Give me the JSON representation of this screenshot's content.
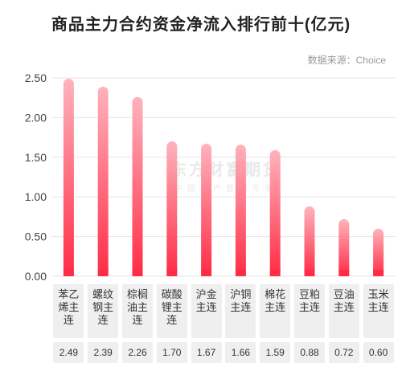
{
  "title": "商品主力合约资金净流入排行前十(亿元)",
  "source": "数据来源：Choice",
  "watermark": {
    "line1": "东方财富期货",
    "line2": "中国资产管理专家"
  },
  "colors": {
    "bar_top": "#ffb3bd",
    "bar_bottom": "#ff2c45",
    "grid": "#e6e6e6",
    "label_box": "#efefef"
  },
  "chart_data": {
    "type": "bar",
    "title": "商品主力合约资金净流入排行前十(亿元)",
    "categories": [
      "苯乙烯主连",
      "螺纹钢主连",
      "棕榈油主连",
      "碳酸锂主连",
      "沪金主连",
      "沪铜主连",
      "棉花主连",
      "豆粕主连",
      "豆油主连",
      "玉米主连"
    ],
    "values": [
      2.49,
      2.39,
      2.26,
      1.7,
      1.67,
      1.66,
      1.59,
      0.88,
      0.72,
      0.6
    ],
    "value_labels": [
      "2.49",
      "2.39",
      "2.26",
      "1.70",
      "1.67",
      "1.66",
      "1.59",
      "0.88",
      "0.72",
      "0.60"
    ],
    "yticks": [
      "0.00",
      "0.50",
      "1.00",
      "1.50",
      "2.00",
      "2.50"
    ],
    "ylim": [
      0,
      2.5
    ],
    "xlabel": "",
    "ylabel": "",
    "grid": true
  }
}
